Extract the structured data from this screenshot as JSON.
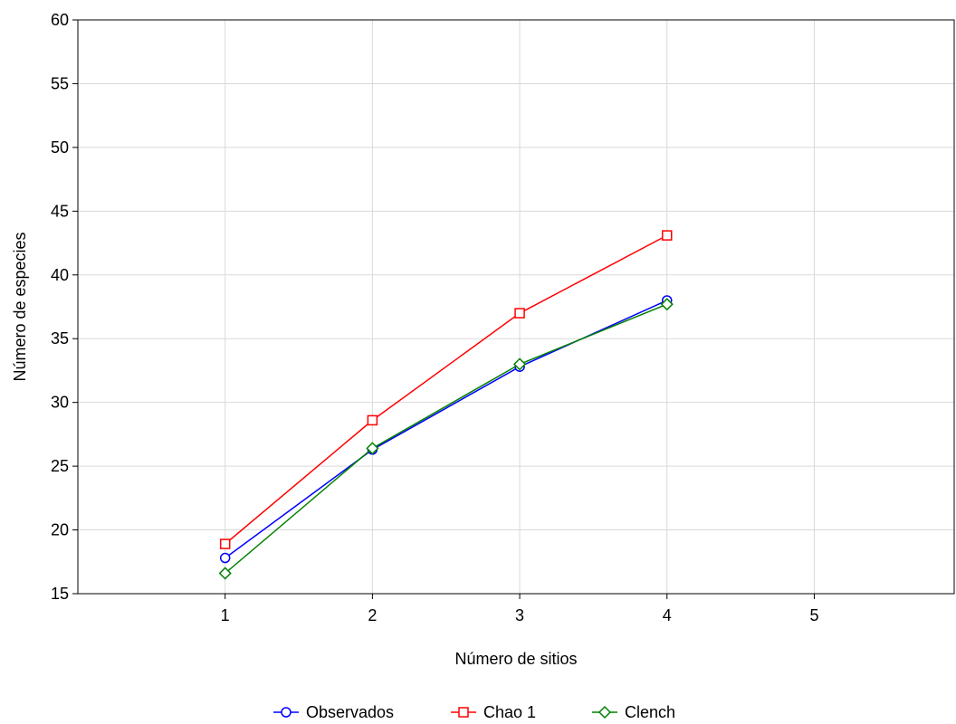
{
  "chart_data": {
    "type": "line",
    "title": "",
    "xlabel": "Número de sitios",
    "ylabel": "Número de especies",
    "x": [
      1,
      2,
      3,
      4
    ],
    "xticks": [
      1,
      2,
      3,
      4,
      5
    ],
    "yticks": [
      15,
      20,
      25,
      30,
      35,
      40,
      45,
      50,
      55,
      60
    ],
    "xlim": [
      0,
      5.95
    ],
    "ylim": [
      15,
      60
    ],
    "grid": true,
    "legend_position": "bottom-center",
    "series": [
      {
        "name": "Observados",
        "values": [
          17.8,
          26.3,
          32.8,
          38.0
        ],
        "color": "#0000ff",
        "marker": "circle"
      },
      {
        "name": "Chao 1",
        "values": [
          18.9,
          28.6,
          37.0,
          43.1
        ],
        "color": "#ff0000",
        "marker": "square"
      },
      {
        "name": "Clench",
        "values": [
          16.6,
          26.4,
          33.0,
          37.7
        ],
        "color": "#008000",
        "marker": "diamond"
      }
    ]
  }
}
